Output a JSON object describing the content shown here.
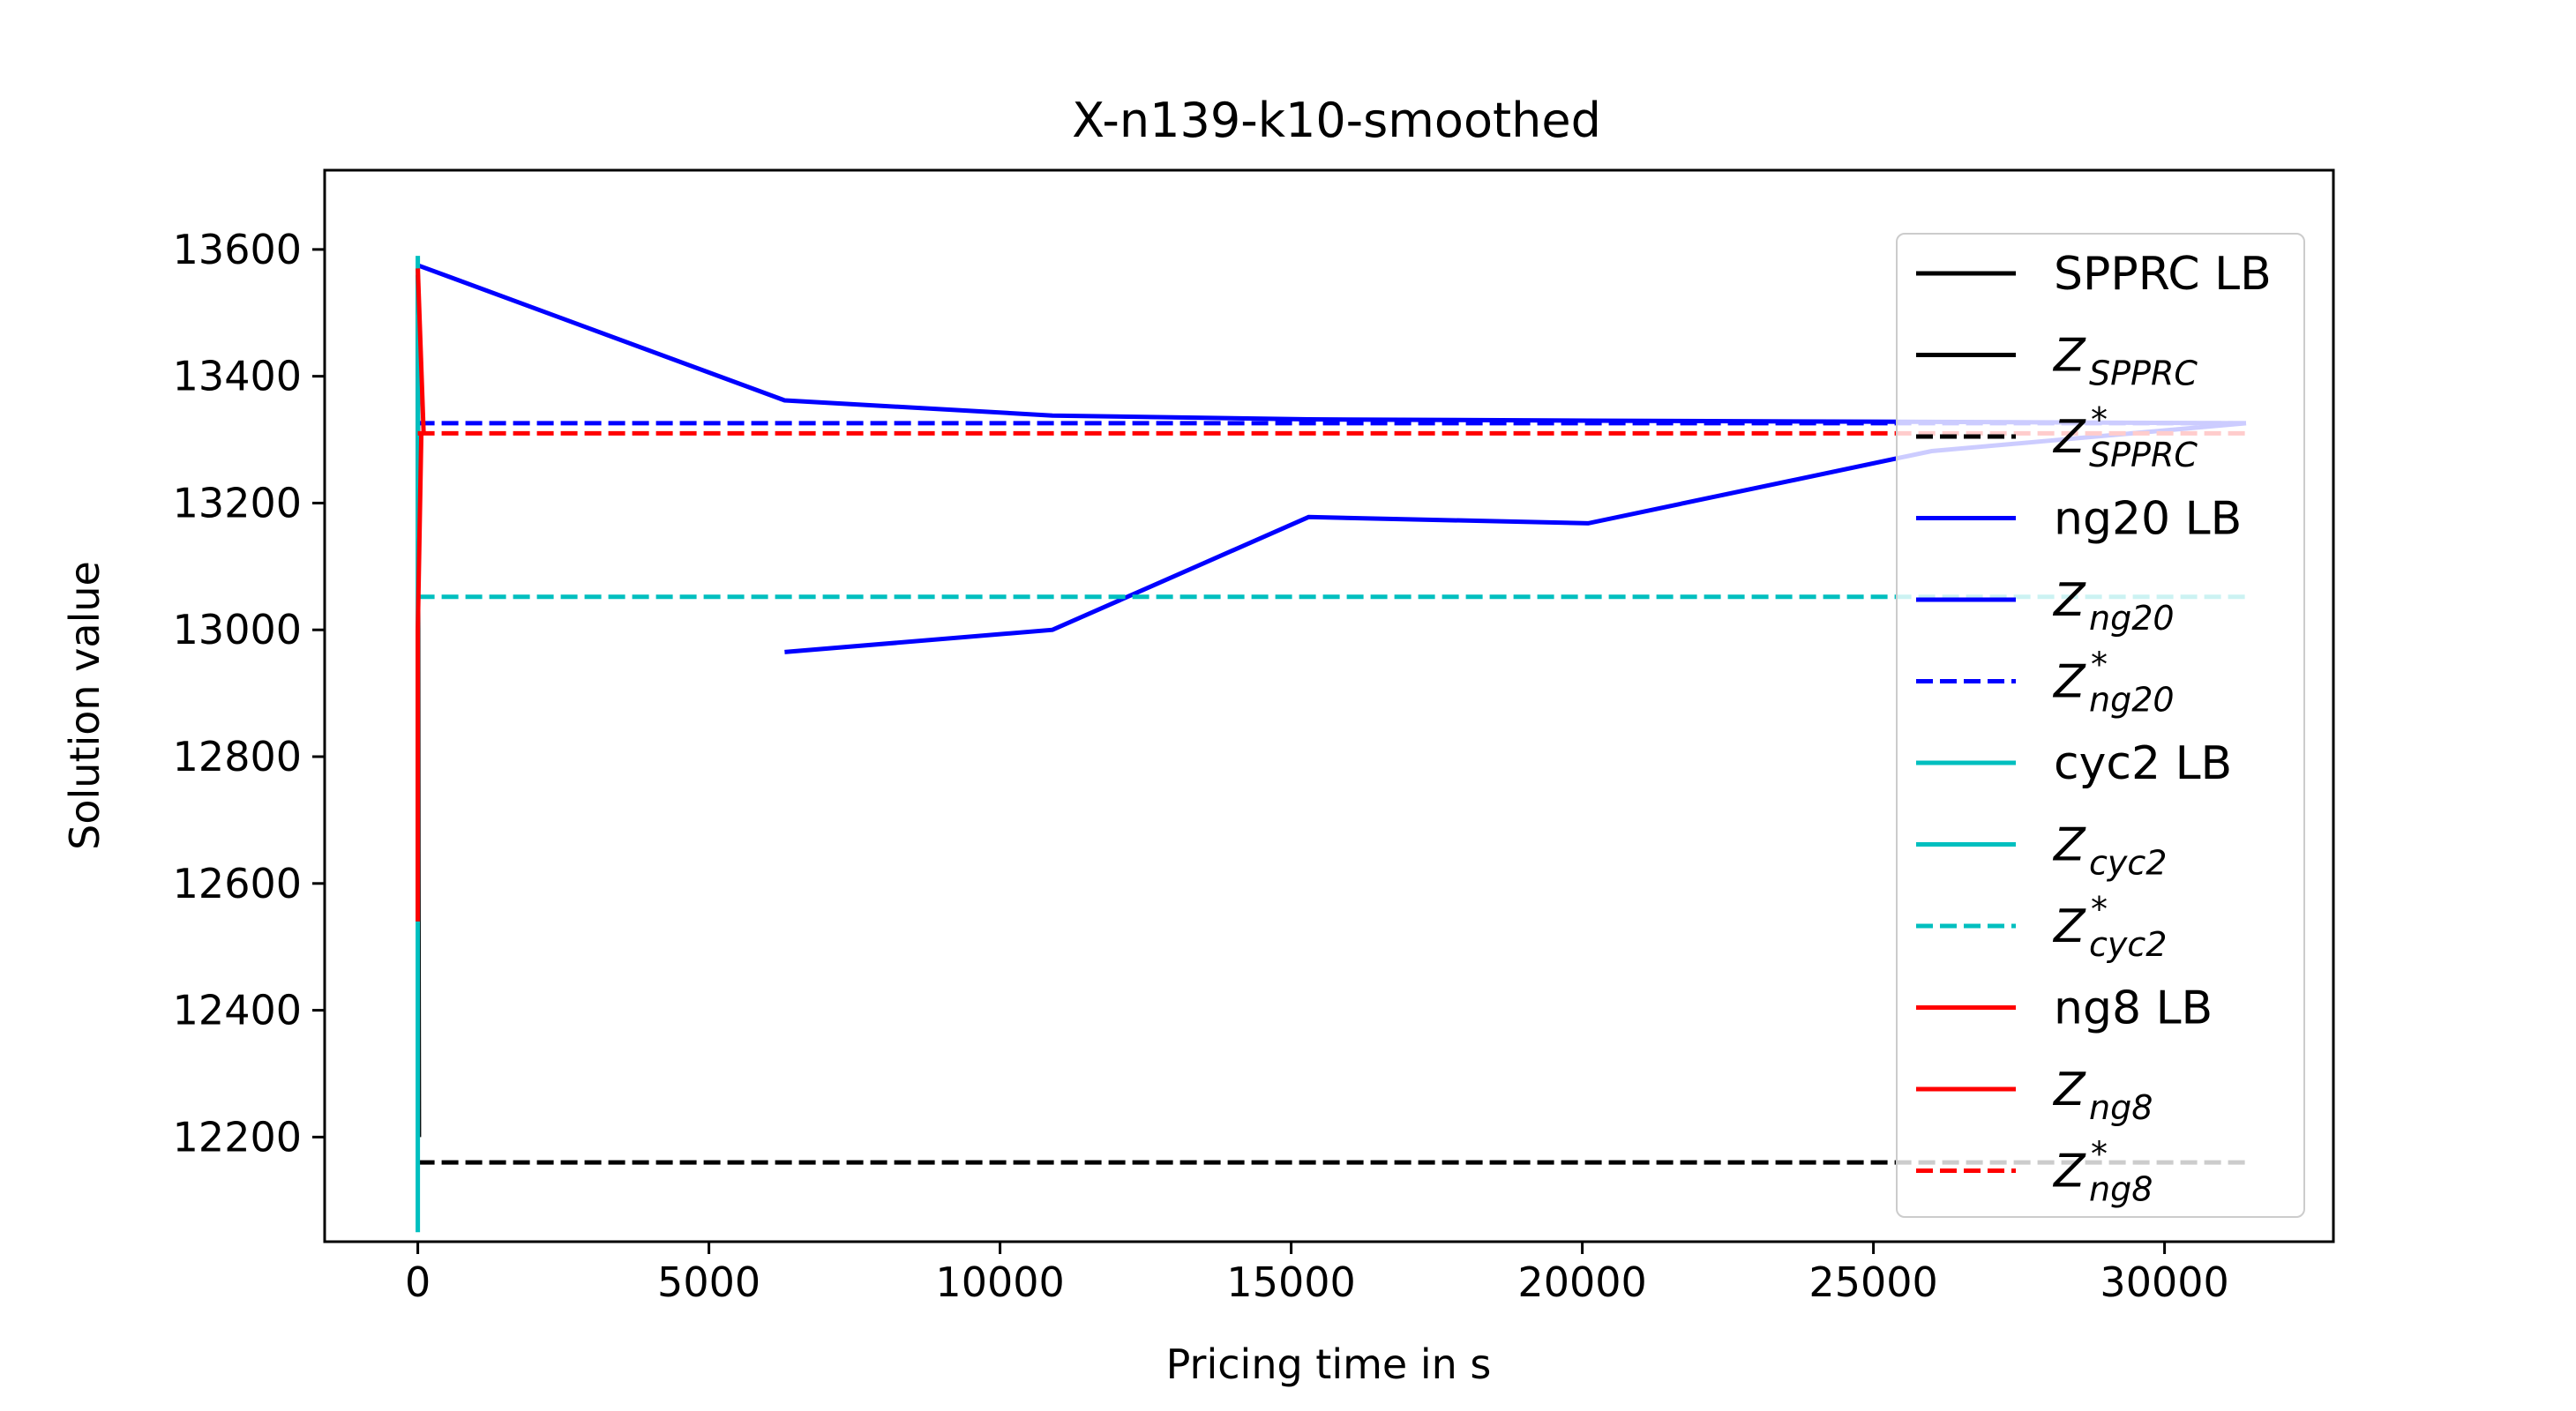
{
  "chart_data": {
    "type": "line",
    "title": "X-n139-k10-smoothed",
    "xlabel": "Pricing time in s",
    "ylabel": "Solution value",
    "xlim": [
      -1600,
      32900
    ],
    "ylim": [
      12035,
      13725
    ],
    "xticks": [
      0,
      5000,
      10000,
      15000,
      20000,
      25000,
      30000
    ],
    "yticks": [
      12200,
      12400,
      12600,
      12800,
      13000,
      13200,
      13400,
      13600
    ],
    "grid": false,
    "legend_position": "top-right",
    "series": [
      {
        "key": "sprc_lb",
        "legend": "SPPRC LB",
        "color": "#000000",
        "dash": "solid",
        "points": [
          [
            0,
            13560
          ],
          [
            10,
            12650
          ],
          [
            20,
            12200
          ]
        ]
      },
      {
        "key": "z_sprc",
        "legend": {
          "base": "Z",
          "sub": "SPPRC",
          "sup": ""
        },
        "color": "#000000",
        "dash": "solid",
        "points": []
      },
      {
        "key": "zstar_sprc",
        "legend": {
          "base": "Z",
          "sub": "SPPRC",
          "sup": "*"
        },
        "color": "#000000",
        "dash": "dashed",
        "points": [
          [
            0,
            12160
          ],
          [
            31400,
            12160
          ]
        ]
      },
      {
        "key": "ng20_lb",
        "legend": "ng20 LB",
        "color": "#0000ff",
        "dash": "solid",
        "points": [
          [
            6300,
            12965
          ],
          [
            10900,
            13000
          ],
          [
            15300,
            13178
          ],
          [
            20100,
            13168
          ],
          [
            26000,
            13282
          ],
          [
            31400,
            13326
          ]
        ]
      },
      {
        "key": "z_ng20",
        "legend": {
          "base": "Z",
          "sub": "ng20",
          "sup": ""
        },
        "color": "#0000ff",
        "dash": "solid",
        "points": [
          [
            0,
            13575
          ],
          [
            6300,
            13362
          ],
          [
            10900,
            13338
          ],
          [
            15300,
            13332
          ],
          [
            20100,
            13330
          ],
          [
            26000,
            13328
          ],
          [
            31400,
            13326
          ]
        ]
      },
      {
        "key": "zstar_ng20",
        "legend": {
          "base": "Z",
          "sub": "ng20",
          "sup": "*"
        },
        "color": "#0000ff",
        "dash": "dashed",
        "points": [
          [
            0,
            13326
          ],
          [
            31400,
            13326
          ]
        ]
      },
      {
        "key": "cyc2_lb",
        "legend": "cyc2 LB",
        "color": "#00bfbf",
        "dash": "solid",
        "points": [
          [
            0,
            12050
          ],
          [
            0,
            12540
          ],
          [
            0,
            13050
          ]
        ]
      },
      {
        "key": "z_cyc2",
        "legend": {
          "base": "Z",
          "sub": "cyc2",
          "sup": ""
        },
        "color": "#00bfbf",
        "dash": "solid",
        "points": [
          [
            0,
            13590
          ],
          [
            0,
            13050
          ]
        ]
      },
      {
        "key": "zstar_cyc2",
        "legend": {
          "base": "Z",
          "sub": "cyc2",
          "sup": "*"
        },
        "color": "#00bfbf",
        "dash": "dashed",
        "points": [
          [
            0,
            13052
          ],
          [
            31400,
            13052
          ]
        ]
      },
      {
        "key": "ng8_lb",
        "legend": "ng8 LB",
        "color": "#ff0000",
        "dash": "solid",
        "points": [
          [
            0,
            12540
          ],
          [
            0,
            13000
          ],
          [
            60,
            13310
          ]
        ]
      },
      {
        "key": "z_ng8",
        "legend": {
          "base": "Z",
          "sub": "ng8",
          "sup": ""
        },
        "color": "#ff0000",
        "dash": "solid",
        "points": [
          [
            0,
            13570
          ],
          [
            100,
            13310
          ]
        ]
      },
      {
        "key": "zstar_ng8",
        "legend": {
          "base": "Z",
          "sub": "ng8",
          "sup": "*"
        },
        "color": "#ff0000",
        "dash": "dashed",
        "points": [
          [
            0,
            13310
          ],
          [
            31400,
            13310
          ]
        ]
      }
    ]
  }
}
